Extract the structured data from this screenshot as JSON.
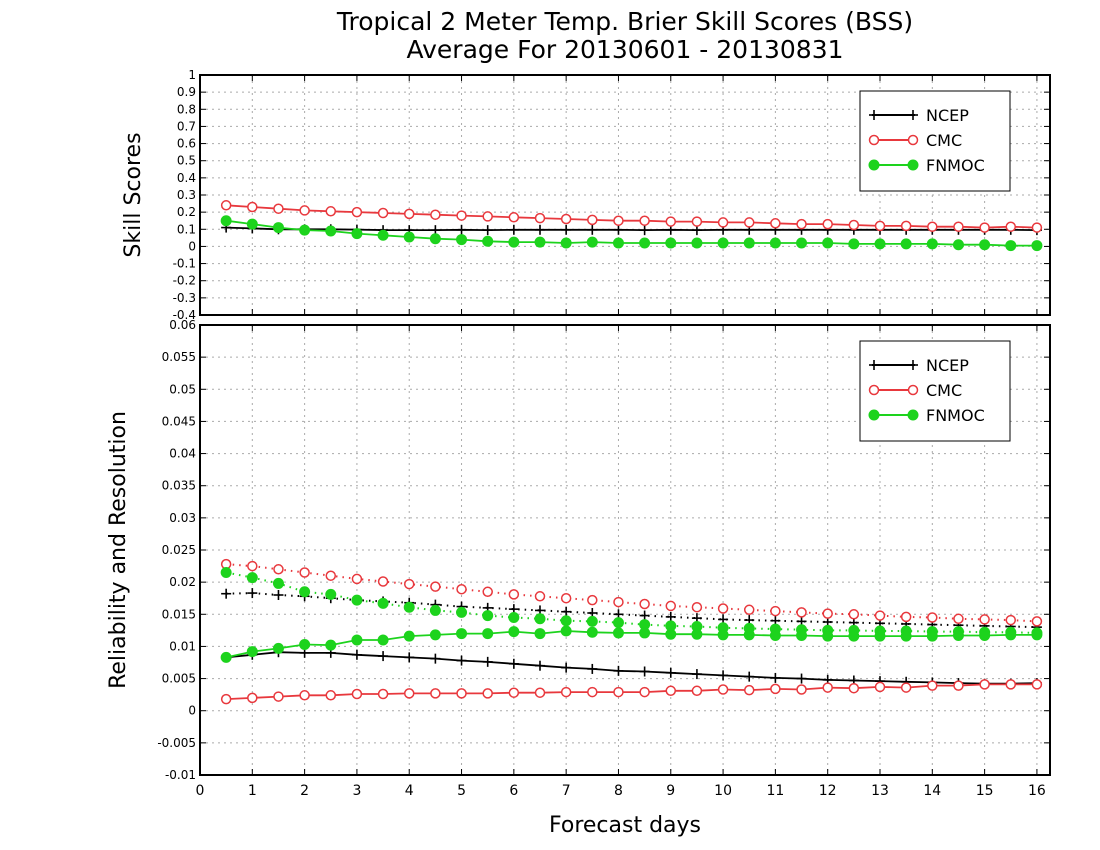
{
  "chart_data": {
    "type": "line",
    "title": "Tropical 2 Meter Temp. Brier Skill Scores (BSS)",
    "subtitle": "Average For 20130601 - 20130831",
    "xlabel": "Forecast days",
    "xlim": [
      0,
      16.25
    ],
    "xticks": [
      "0",
      "1",
      "2",
      "3",
      "4",
      "5",
      "6",
      "7",
      "8",
      "9",
      "10",
      "11",
      "12",
      "13",
      "14",
      "15",
      "16"
    ],
    "x": [
      0.5,
      1,
      1.5,
      2,
      2.5,
      3,
      3.5,
      4,
      4.5,
      5,
      5.5,
      6,
      6.5,
      7,
      7.5,
      8,
      8.5,
      9,
      9.5,
      10,
      10.5,
      11,
      11.5,
      12,
      12.5,
      13,
      13.5,
      14,
      14.5,
      15,
      15.5,
      16
    ],
    "colors": {
      "NCEP": "#000000",
      "CMC": "#e8383d",
      "FNMOC": "#1dd31d"
    },
    "panels": [
      {
        "name": "top",
        "ylabel": "Skill Scores",
        "ylim": [
          -0.4,
          1
        ],
        "yticks": [
          "1",
          "0.9",
          "0.8",
          "0.7",
          "0.6",
          "0.5",
          "0.4",
          "0.3",
          "0.2",
          "0.1",
          "0",
          "-0.1",
          "-0.2",
          "-0.3",
          "-0.4"
        ],
        "grid": true,
        "legend": {
          "placement": "top-right",
          "entries": [
            "NCEP",
            "CMC",
            "FNMOC"
          ]
        },
        "series": [
          {
            "name": "NCEP",
            "marker": "plus",
            "line": "solid",
            "values": [
              0.11,
              0.105,
              0.1,
              0.1,
              0.1,
              0.098,
              0.095,
              0.095,
              0.095,
              0.097,
              0.095,
              0.097,
              0.097,
              0.097,
              0.097,
              0.097,
              0.095,
              0.097,
              0.095,
              0.097,
              0.097,
              0.097,
              0.097,
              0.097,
              0.097,
              0.097,
              0.097,
              0.097,
              0.097,
              0.097,
              0.097,
              0.095
            ]
          },
          {
            "name": "CMC",
            "marker": "open-circle",
            "line": "solid",
            "values": [
              0.24,
              0.23,
              0.22,
              0.21,
              0.205,
              0.2,
              0.195,
              0.19,
              0.185,
              0.18,
              0.175,
              0.17,
              0.165,
              0.16,
              0.155,
              0.15,
              0.15,
              0.145,
              0.145,
              0.14,
              0.14,
              0.135,
              0.13,
              0.13,
              0.125,
              0.12,
              0.12,
              0.115,
              0.115,
              0.11,
              0.115,
              0.11
            ]
          },
          {
            "name": "FNMOC",
            "marker": "filled-circle",
            "line": "solid",
            "values": [
              0.15,
              0.13,
              0.11,
              0.095,
              0.09,
              0.075,
              0.065,
              0.055,
              0.045,
              0.04,
              0.03,
              0.025,
              0.025,
              0.02,
              0.025,
              0.02,
              0.02,
              0.02,
              0.02,
              0.02,
              0.02,
              0.02,
              0.02,
              0.02,
              0.015,
              0.015,
              0.015,
              0.015,
              0.01,
              0.01,
              0.005,
              0.005
            ]
          }
        ]
      },
      {
        "name": "bottom",
        "ylabel": "Reliability and Resolution",
        "ylim": [
          -0.01,
          0.06
        ],
        "yticks": [
          "0.06",
          "0.055",
          "0.05",
          "0.045",
          "0.04",
          "0.035",
          "0.03",
          "0.025",
          "0.02",
          "0.015",
          "0.01",
          "0.005",
          "0",
          "-0.005",
          "-0.01"
        ],
        "grid": true,
        "legend": {
          "placement": "top-right",
          "entries": [
            "NCEP",
            "CMC",
            "FNMOC"
          ]
        },
        "series": [
          {
            "name": "NCEP",
            "group": "dotted",
            "marker": "plus",
            "line": "dotted",
            "values": [
              0.0182,
              0.0183,
              0.018,
              0.0178,
              0.0175,
              0.0172,
              0.017,
              0.0168,
              0.0165,
              0.0162,
              0.016,
              0.0158,
              0.0156,
              0.0154,
              0.0152,
              0.015,
              0.0148,
              0.0146,
              0.0144,
              0.0142,
              0.0141,
              0.014,
              0.0139,
              0.0138,
              0.0137,
              0.0136,
              0.0135,
              0.0134,
              0.0133,
              0.0132,
              0.0131,
              0.013
            ]
          },
          {
            "name": "CMC",
            "group": "dotted",
            "marker": "open-circle",
            "line": "dotted",
            "values": [
              0.0228,
              0.0225,
              0.022,
              0.0215,
              0.021,
              0.0205,
              0.0201,
              0.0197,
              0.0193,
              0.0189,
              0.0185,
              0.0181,
              0.0178,
              0.0175,
              0.0172,
              0.0169,
              0.0166,
              0.0163,
              0.0161,
              0.0159,
              0.0157,
              0.0155,
              0.0153,
              0.0151,
              0.015,
              0.0148,
              0.0146,
              0.0145,
              0.0143,
              0.0142,
              0.0141,
              0.0139
            ]
          },
          {
            "name": "FNMOC",
            "group": "dotted",
            "marker": "filled-circle",
            "line": "dotted",
            "values": [
              0.0215,
              0.0207,
              0.0198,
              0.0185,
              0.0181,
              0.0172,
              0.0167,
              0.0161,
              0.0156,
              0.0153,
              0.0148,
              0.0145,
              0.0143,
              0.014,
              0.0139,
              0.0137,
              0.0134,
              0.0132,
              0.0131,
              0.0129,
              0.0128,
              0.0127,
              0.0126,
              0.0125,
              0.0125,
              0.0124,
              0.0124,
              0.0123,
              0.0123,
              0.0122,
              0.0122,
              0.0121
            ]
          },
          {
            "name": "NCEP",
            "group": "solid",
            "marker": "plus",
            "line": "solid",
            "values": [
              0.0083,
              0.0087,
              0.0091,
              0.009,
              0.009,
              0.0087,
              0.0085,
              0.0083,
              0.0081,
              0.0078,
              0.0076,
              0.0073,
              0.007,
              0.0067,
              0.0065,
              0.0062,
              0.0061,
              0.0059,
              0.0057,
              0.0055,
              0.0053,
              0.0051,
              0.005,
              0.0048,
              0.0047,
              0.0046,
              0.0045,
              0.0044,
              0.0043,
              0.0042,
              0.0042,
              0.0043
            ]
          },
          {
            "name": "CMC",
            "group": "solid",
            "marker": "open-circle",
            "line": "solid",
            "values": [
              0.0018,
              0.002,
              0.0022,
              0.0024,
              0.0024,
              0.0026,
              0.0026,
              0.0027,
              0.0027,
              0.0027,
              0.0027,
              0.0028,
              0.0028,
              0.0029,
              0.0029,
              0.0029,
              0.0029,
              0.0031,
              0.0031,
              0.0033,
              0.0032,
              0.0034,
              0.0033,
              0.0036,
              0.0035,
              0.0037,
              0.0036,
              0.0039,
              0.0039,
              0.0041,
              0.0041,
              0.0041
            ]
          },
          {
            "name": "FNMOC",
            "group": "solid",
            "marker": "filled-circle",
            "line": "solid",
            "values": [
              0.0083,
              0.0092,
              0.0097,
              0.0103,
              0.0102,
              0.011,
              0.011,
              0.0116,
              0.0118,
              0.012,
              0.012,
              0.0123,
              0.012,
              0.0124,
              0.0122,
              0.0121,
              0.0121,
              0.0119,
              0.0119,
              0.0118,
              0.0118,
              0.0117,
              0.0117,
              0.0116,
              0.0116,
              0.0116,
              0.0116,
              0.0116,
              0.0117,
              0.0117,
              0.0118,
              0.0118
            ]
          }
        ]
      }
    ]
  }
}
